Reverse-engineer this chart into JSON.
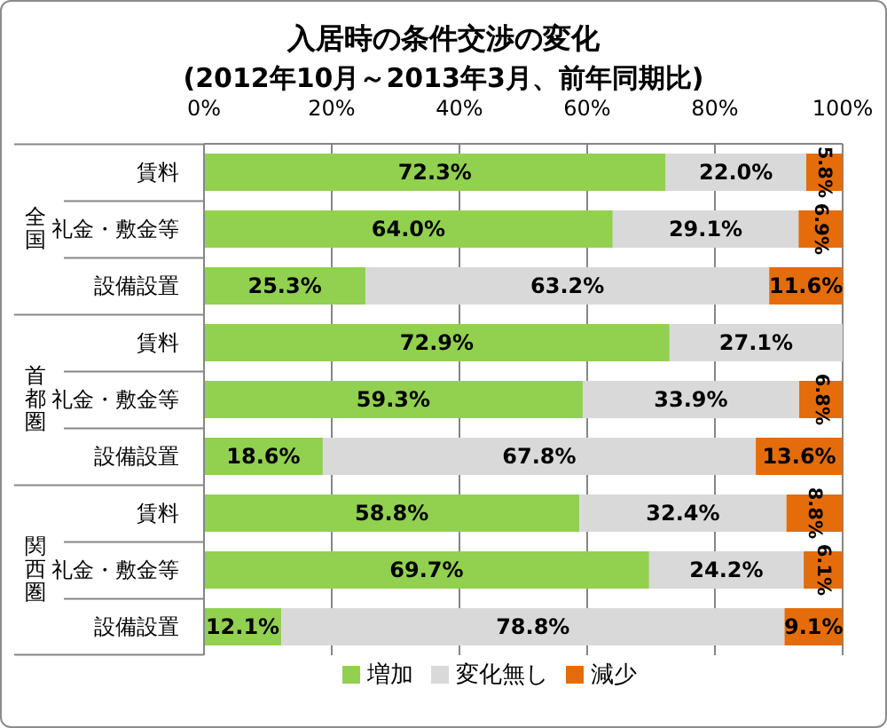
{
  "chart_data": {
    "type": "bar",
    "orientation": "horizontal",
    "stacked": true,
    "title": "入居時の条件交渉の変化",
    "subtitle": "(2012年10月～2013年3月、前年同期比)",
    "categories": [
      "賃料",
      "礼金・敷金等",
      "設備設置",
      "賃料",
      "礼金・敷金等",
      "設備設置",
      "賃料",
      "礼金・敷金等",
      "設備設置"
    ],
    "annotations": [
      "全国",
      "首都圏",
      "関西圏"
    ],
    "series": [
      {
        "name": "増加",
        "color": "#92d050",
        "values": [
          72.3,
          64.0,
          25.3,
          72.9,
          59.3,
          18.6,
          58.8,
          69.7,
          12.1
        ],
        "value_labels": [
          "72.3%",
          "64.0%",
          "25.3%",
          "72.9%",
          "59.3%",
          "18.6%",
          "58.8%",
          "69.7%",
          "12.1%"
        ]
      },
      {
        "name": "変化無し",
        "color": "#d9d9d9",
        "values": [
          22.0,
          29.1,
          63.2,
          27.1,
          33.9,
          67.8,
          32.4,
          24.2,
          78.8
        ],
        "value_labels": [
          "22.0%",
          "29.1%",
          "63.2%",
          "27.1%",
          "33.9%",
          "67.8%",
          "32.4%",
          "24.2%",
          "78.8%"
        ]
      },
      {
        "name": "減少",
        "color": "#e46c0a",
        "values": [
          5.8,
          6.9,
          11.6,
          0,
          6.8,
          13.6,
          8.8,
          6.1,
          9.1
        ],
        "value_labels": [
          "5.8%",
          "6.9%",
          "11.6%",
          null,
          "6.8%",
          "13.6%",
          "8.8%",
          "6.1%",
          "9.1%"
        ]
      }
    ],
    "xlim": [
      0,
      100
    ],
    "xticks": [
      {
        "value": 0,
        "label": "0%"
      },
      {
        "value": 20,
        "label": "20%"
      },
      {
        "value": 40,
        "label": "40%"
      },
      {
        "value": 60,
        "label": "60%"
      },
      {
        "value": 80,
        "label": "80%"
      },
      {
        "value": 100,
        "label": "100%"
      }
    ],
    "grid": "x",
    "legend": "bottom"
  }
}
